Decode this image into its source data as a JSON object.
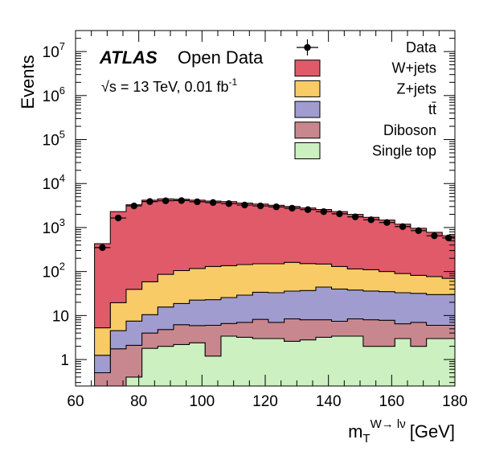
{
  "chart_data": {
    "type": "stacked-histogram",
    "xlabel": {
      "main": "m",
      "sub": "T",
      "sup": "W→ lν",
      "unit": "[GeV]"
    },
    "ylabel": "Events",
    "xlim": [
      60,
      180
    ],
    "ylim": [
      0.25,
      30000000
    ],
    "yscale": "log",
    "x_ticks": [
      60,
      80,
      100,
      120,
      140,
      160,
      180
    ],
    "y_ticks": [
      {
        "value": 1,
        "label": "1"
      },
      {
        "value": 10,
        "label": "10"
      },
      {
        "value": 100,
        "label": "10",
        "exp": "2"
      },
      {
        "value": 1000,
        "label": "10",
        "exp": "3"
      },
      {
        "value": 10000,
        "label": "10",
        "exp": "4"
      },
      {
        "value": 100000,
        "label": "10",
        "exp": "5"
      },
      {
        "value": 1000000,
        "label": "10",
        "exp": "6"
      },
      {
        "value": 10000000,
        "label": "10",
        "exp": "7"
      }
    ],
    "bin_edges": [
      66,
      71,
      76,
      81,
      86,
      91,
      96,
      101,
      106,
      111,
      116,
      121,
      126,
      131,
      136,
      141,
      146,
      151,
      156,
      161,
      166,
      171,
      176,
      180
    ],
    "stack_order": [
      "Single top",
      "Diboson",
      "t#bar{t}",
      "Z+jets",
      "W+jets"
    ],
    "series": [
      {
        "name": "Single top",
        "color": "#ccf0c0",
        "values": [
          0.2,
          0.25,
          0.4,
          1.8,
          2.0,
          2.2,
          2.4,
          1.2,
          3.4,
          3.2,
          3.0,
          3.0,
          2.6,
          2.8,
          3.2,
          3.4,
          3.4,
          2.0,
          2.0,
          3.0,
          2.0,
          3.0,
          3.0
        ]
      },
      {
        "name": "Diboson",
        "color": "#c8878e",
        "values": [
          0.3,
          1.5,
          1.7,
          2.2,
          2.8,
          4.0,
          3.5,
          4.8,
          3.2,
          3.8,
          5.2,
          4.0,
          5.8,
          5.2,
          4.8,
          4.0,
          5.0,
          6.0,
          5.8,
          3.5,
          5.0,
          3.0,
          3.0
        ]
      },
      {
        "name": "t#bar{t}",
        "color": "#a09ccf",
        "values": [
          0.75,
          2.8,
          5.4,
          6.5,
          10.8,
          12.6,
          16.6,
          17.0,
          19.0,
          22.0,
          25.6,
          26.0,
          27.4,
          29.0,
          36.2,
          32.6,
          29.6,
          28.0,
          27.2,
          26.5,
          25.0,
          24.0,
          24.0
        ]
      },
      {
        "name": "Z+jets",
        "color": "#f8cb66",
        "values": [
          4.0,
          15.0,
          32.0,
          48.0,
          71.0,
          86.0,
          95.0,
          107.0,
          110.0,
          115.0,
          116.0,
          117.0,
          126.0,
          115.0,
          104.0,
          90.0,
          77.0,
          74.0,
          65.0,
          57.0,
          50.0,
          47.0,
          40.0
        ]
      },
      {
        "name": "W+jets",
        "color": "#e15a6a",
        "values": [
          425.0,
          2280.0,
          3260.0,
          4140.0,
          4410.0,
          4300.0,
          4070.0,
          3880.0,
          3730.0,
          3450.0,
          3270.0,
          3050.0,
          2850.0,
          2630.0,
          2420.0,
          2170.0,
          1870.0,
          1600.0,
          1380.0,
          1100.0,
          880.0,
          700.0,
          580.0
        ]
      }
    ],
    "data_points": {
      "name": "Data",
      "x": [
        68.5,
        73.5,
        78.5,
        83.5,
        88.5,
        93.5,
        98.5,
        103.5,
        108.5,
        113.5,
        118.5,
        123.5,
        128.5,
        133.5,
        138.5,
        143.5,
        148.5,
        153.5,
        158.5,
        163.5,
        168.5,
        173.5,
        178
      ]
    },
    "legend": [
      {
        "name": "Data",
        "style": "marker"
      },
      {
        "name": "W+jets",
        "style": "box",
        "color": "#e15a6a"
      },
      {
        "name": "Z+jets",
        "style": "box",
        "color": "#f8cb66"
      },
      {
        "name": "tt",
        "style": "box",
        "color": "#a09ccf",
        "overline_second": true
      },
      {
        "name": "Diboson",
        "style": "box",
        "color": "#c8878e"
      },
      {
        "name": "Single top",
        "style": "box",
        "color": "#ccf0c0"
      }
    ],
    "legend_position": "top-right",
    "annotations": {
      "atlas": "ATLAS",
      "open_data": "Open Data",
      "sqrt_s": "√s = 13 TeV, 0.01 fb",
      "lumi_exp": "-1"
    },
    "data_y": [
      350,
      1650,
      3100,
      3900,
      4050,
      4100,
      3850,
      3700,
      3500,
      3250,
      3100,
      2950,
      2750,
      2550,
      2300,
      2050,
      1750,
      1500,
      1300,
      1050,
      850,
      650,
      580
    ]
  }
}
